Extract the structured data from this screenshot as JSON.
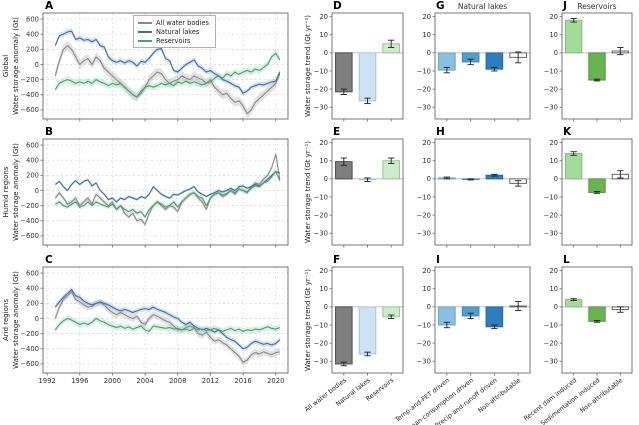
{
  "chart_data": {
    "type": "multi-panel",
    "description": "Water storage anomaly time series and trend bar charts",
    "rows": [
      {
        "region": "Global"
      },
      {
        "region": "Humid regions"
      },
      {
        "region": "Arid regions"
      }
    ],
    "timeseries": {
      "ylabel": "Water storage anomaly (Gt)",
      "x_start": 1993.0,
      "x_step": 0.5,
      "xlim": [
        1991.5,
        2021.5
      ],
      "ylim": [
        -720,
        680
      ],
      "xticks": [
        1992,
        1996,
        2000,
        2004,
        2008,
        2012,
        2016,
        2020
      ],
      "yticks": [
        600,
        400,
        200,
        0,
        -200,
        -400,
        -600
      ],
      "series_names": [
        "All water bodies",
        "Natural lakes",
        "Reservoirs"
      ],
      "series_colors": [
        "#8a8a8a",
        "#3e6fa3",
        "#48a172"
      ],
      "band_colors": [
        "#b0b0b0",
        "#8fb3d6",
        "#9fd1b4"
      ],
      "panels": [
        {
          "letter": "A",
          "show_xlabels": false,
          "legend": true,
          "series": [
            {
              "name": "All water bodies",
              "band": 60,
              "values": [
                -150,
                50,
                200,
                250,
                200,
                100,
                0,
                50,
                80,
                0,
                100,
                50,
                -50,
                -100,
                -150,
                -200,
                -250,
                -300,
                -350,
                -400,
                -430,
                -350,
                -300,
                -200,
                -150,
                -100,
                -120,
                -200,
                -250,
                -220,
                -200,
                -150,
                -180,
                -200,
                -150,
                -180,
                -200,
                -250,
                -200,
                -300,
                -350,
                -400,
                -380,
                -450,
                -500,
                -480,
                -550,
                -650,
                -600,
                -500,
                -450,
                -400,
                -350,
                -300,
                -250,
                -120
              ]
            },
            {
              "name": "Natural lakes",
              "band": 35,
              "values": [
                250,
                380,
                400,
                430,
                440,
                330,
                350,
                320,
                330,
                300,
                330,
                250,
                230,
                100,
                50,
                30,
                50,
                20,
                50,
                30,
                -20,
                40,
                30,
                80,
                150,
                200,
                210,
                80,
                50,
                -80,
                -100,
                -50,
                0,
                30,
                60,
                -20,
                -50,
                -100,
                -80,
                -120,
                -150,
                -200,
                -220,
                -250,
                -280,
                -300,
                -380,
                -350,
                -300,
                -280,
                -260,
                -270,
                -250,
                -230,
                -220,
                -100
              ]
            },
            {
              "name": "Reservoirs",
              "band": 45,
              "values": [
                -330,
                -250,
                -220,
                -200,
                -220,
                -250,
                -230,
                -250,
                -220,
                -250,
                -200,
                -230,
                -250,
                -280,
                -250,
                -270,
                -250,
                -300,
                -350,
                -400,
                -430,
                -380,
                -300,
                -280,
                -300,
                -280,
                -250,
                -270,
                -250,
                -280,
                -230,
                -250,
                -220,
                -250,
                -230,
                -250,
                -270,
                -250,
                -230,
                -180,
                -150,
                -180,
                -120,
                -150,
                -100,
                -130,
                -100,
                -80,
                -100,
                -60,
                -80,
                -40,
                0,
                100,
                150,
                60
              ]
            }
          ]
        },
        {
          "letter": "B",
          "show_xlabels": false,
          "legend": false,
          "series": [
            {
              "name": "All water bodies",
              "band": 30,
              "values": [
                -100,
                -30,
                -100,
                -180,
                -150,
                -100,
                -200,
                -150,
                -100,
                -180,
                -50,
                -100,
                -150,
                -200,
                -150,
                -250,
                -200,
                -300,
                -350,
                -300,
                -400,
                -380,
                -450,
                -300,
                -200,
                -150,
                -200,
                -250,
                -200,
                -220,
                -280,
                -150,
                -100,
                -50,
                -30,
                -100,
                -150,
                -250,
                -100,
                -50,
                -30,
                -80,
                -50,
                0,
                -50,
                20,
                0,
                -30,
                50,
                100,
                80,
                150,
                200,
                300,
                480,
                150
              ]
            },
            {
              "name": "Natural lakes",
              "band": 20,
              "values": [
                80,
                120,
                50,
                0,
                80,
                130,
                80,
                120,
                140,
                60,
                100,
                0,
                -50,
                -120,
                -100,
                -150,
                -100,
                -120,
                -80,
                -100,
                -120,
                -80,
                -100,
                -50,
                50,
                0,
                -50,
                -80,
                -100,
                -50,
                -60,
                -30,
                0,
                20,
                50,
                -20,
                -50,
                -80,
                -50,
                -30,
                0,
                -20,
                0,
                30,
                0,
                50,
                60,
                30,
                50,
                80,
                60,
                100,
                150,
                200,
                250,
                230
              ]
            },
            {
              "name": "Reservoirs",
              "band": 30,
              "values": [
                -180,
                -150,
                -200,
                -220,
                -180,
                -150,
                -220,
                -200,
                -150,
                -200,
                -150,
                -180,
                -200,
                -220,
                -180,
                -250,
                -200,
                -250,
                -280,
                -250,
                -300,
                -280,
                -350,
                -250,
                -200,
                -150,
                -180,
                -220,
                -200,
                -150,
                -220,
                -150,
                -100,
                -50,
                -30,
                -80,
                -100,
                -200,
                -100,
                -50,
                -30,
                -60,
                -40,
                0,
                -30,
                20,
                0,
                -20,
                30,
                60,
                50,
                100,
                120,
                180,
                250,
                130
              ]
            }
          ]
        },
        {
          "letter": "C",
          "show_xlabels": true,
          "legend": false,
          "series": [
            {
              "name": "All water bodies",
              "band": 45,
              "values": [
                0,
                150,
                250,
                300,
                350,
                250,
                220,
                180,
                150,
                160,
                200,
                210,
                180,
                120,
                80,
                50,
                80,
                50,
                20,
                0,
                30,
                -50,
                -80,
                0,
                50,
                30,
                0,
                -30,
                -50,
                -100,
                -150,
                -150,
                -120,
                -100,
                -120,
                -200,
                -220,
                -180,
                -250,
                -300,
                -280,
                -320,
                -350,
                -400,
                -450,
                -500,
                -580,
                -550,
                -480,
                -450,
                -470,
                -440,
                -460,
                -480,
                -450,
                -440
              ]
            },
            {
              "name": "Natural lakes",
              "band": 35,
              "values": [
                150,
                220,
                280,
                330,
                380,
                300,
                280,
                230,
                200,
                180,
                200,
                220,
                200,
                180,
                150,
                120,
                100,
                120,
                100,
                80,
                100,
                120,
                130,
                120,
                150,
                120,
                100,
                80,
                50,
                20,
                0,
                -50,
                -80,
                -50,
                -100,
                -130,
                -150,
                -130,
                -150,
                -180,
                -150,
                -200,
                -250,
                -280,
                -300,
                -350,
                -400,
                -380,
                -330,
                -300,
                -320,
                -340,
                -330,
                -350,
                -330,
                -280
              ]
            },
            {
              "name": "Reservoirs",
              "band": 40,
              "values": [
                -150,
                -80,
                -30,
                0,
                -20,
                -50,
                -80,
                -60,
                -80,
                -50,
                0,
                -30,
                -50,
                -80,
                -100,
                -120,
                -100,
                -130,
                -110,
                -140,
                -120,
                -100,
                -150,
                -170,
                -100,
                -110,
                -120,
                -130,
                -120,
                -140,
                -130,
                -150,
                -140,
                -160,
                -130,
                -150,
                -140,
                -160,
                -150,
                -130,
                -150,
                -170,
                -150,
                -130,
                -160,
                -140,
                -170,
                -150,
                -160,
                -140,
                -150,
                -130,
                -110,
                -130,
                -140,
                -120
              ]
            }
          ]
        }
      ]
    },
    "bars": {
      "ylabel": "Water storage trend (Gt yr⁻¹)",
      "ylim": [
        -36.5,
        22
      ],
      "yticks": [
        20,
        10,
        0,
        -10,
        -20,
        -30
      ],
      "columns": [
        {
          "header": "",
          "categories": [
            "All water bodies",
            "Natural lakes",
            "Reservoirs"
          ],
          "fills": [
            "#7f7f7f",
            "#cfe2f2",
            "#cfe9ca"
          ],
          "edges": [
            "#4d4d4d",
            "#a3c4de",
            "#8fca90"
          ],
          "panels": [
            {
              "letter": "D",
              "values": [
                -21.5,
                -26.5,
                5
              ],
              "errors": [
                1.5,
                1.5,
                2
              ],
              "show_xlabels": false
            },
            {
              "letter": "E",
              "values": [
                9.5,
                -0.5,
                10
              ],
              "errors": [
                2,
                1,
                1.5
              ],
              "show_xlabels": false
            },
            {
              "letter": "F",
              "values": [
                -31.5,
                -26,
                -5.5
              ],
              "errors": [
                1,
                1,
                1
              ],
              "show_xlabels": true
            }
          ]
        },
        {
          "header": "Natural lakes",
          "categories": [
            "Temp-and-PET driven",
            "Human-consumption driven",
            "Precip-and-runoff driven",
            "Non-attributable"
          ],
          "fills": [
            "#8abfdd",
            "#539ecd",
            "#2e7ebd",
            "#ffffff"
          ],
          "edges": [
            "#6aa6c8",
            "#3f85b5",
            "#2268a0",
            "#666666"
          ],
          "panels": [
            {
              "letter": "G",
              "values": [
                -9.5,
                -5,
                -9,
                -2.5
              ],
              "errors": [
                1.5,
                1.5,
                1,
                3
              ],
              "show_xlabels": false
            },
            {
              "letter": "H",
              "values": [
                0.5,
                -0.3,
                2,
                -2.5
              ],
              "errors": [
                0.5,
                0.3,
                0.5,
                1.5
              ],
              "show_xlabels": false
            },
            {
              "letter": "I",
              "values": [
                -10,
                -5,
                -11,
                0.5
              ],
              "errors": [
                1.5,
                1.5,
                1,
                2.5
              ],
              "show_xlabels": true
            }
          ]
        },
        {
          "header": "Reservoirs",
          "categories": [
            "Recent dam induced",
            "Sedimentation induced",
            "Non-attributable"
          ],
          "fills": [
            "#a6d99c",
            "#69b450",
            "#ffffff"
          ],
          "edges": [
            "#82c178",
            "#4f9340",
            "#666666"
          ],
          "panels": [
            {
              "letter": "J",
              "values": [
                18,
                -15,
                1
              ],
              "errors": [
                1,
                0.5,
                2
              ],
              "show_xlabels": false
            },
            {
              "letter": "K",
              "values": [
                14,
                -7.5,
                2.5
              ],
              "errors": [
                1,
                0.5,
                2
              ],
              "show_xlabels": false
            },
            {
              "letter": "L",
              "values": [
                4,
                -8,
                -1.5
              ],
              "errors": [
                0.5,
                0.5,
                1.5
              ],
              "show_xlabels": true
            }
          ]
        }
      ]
    }
  }
}
